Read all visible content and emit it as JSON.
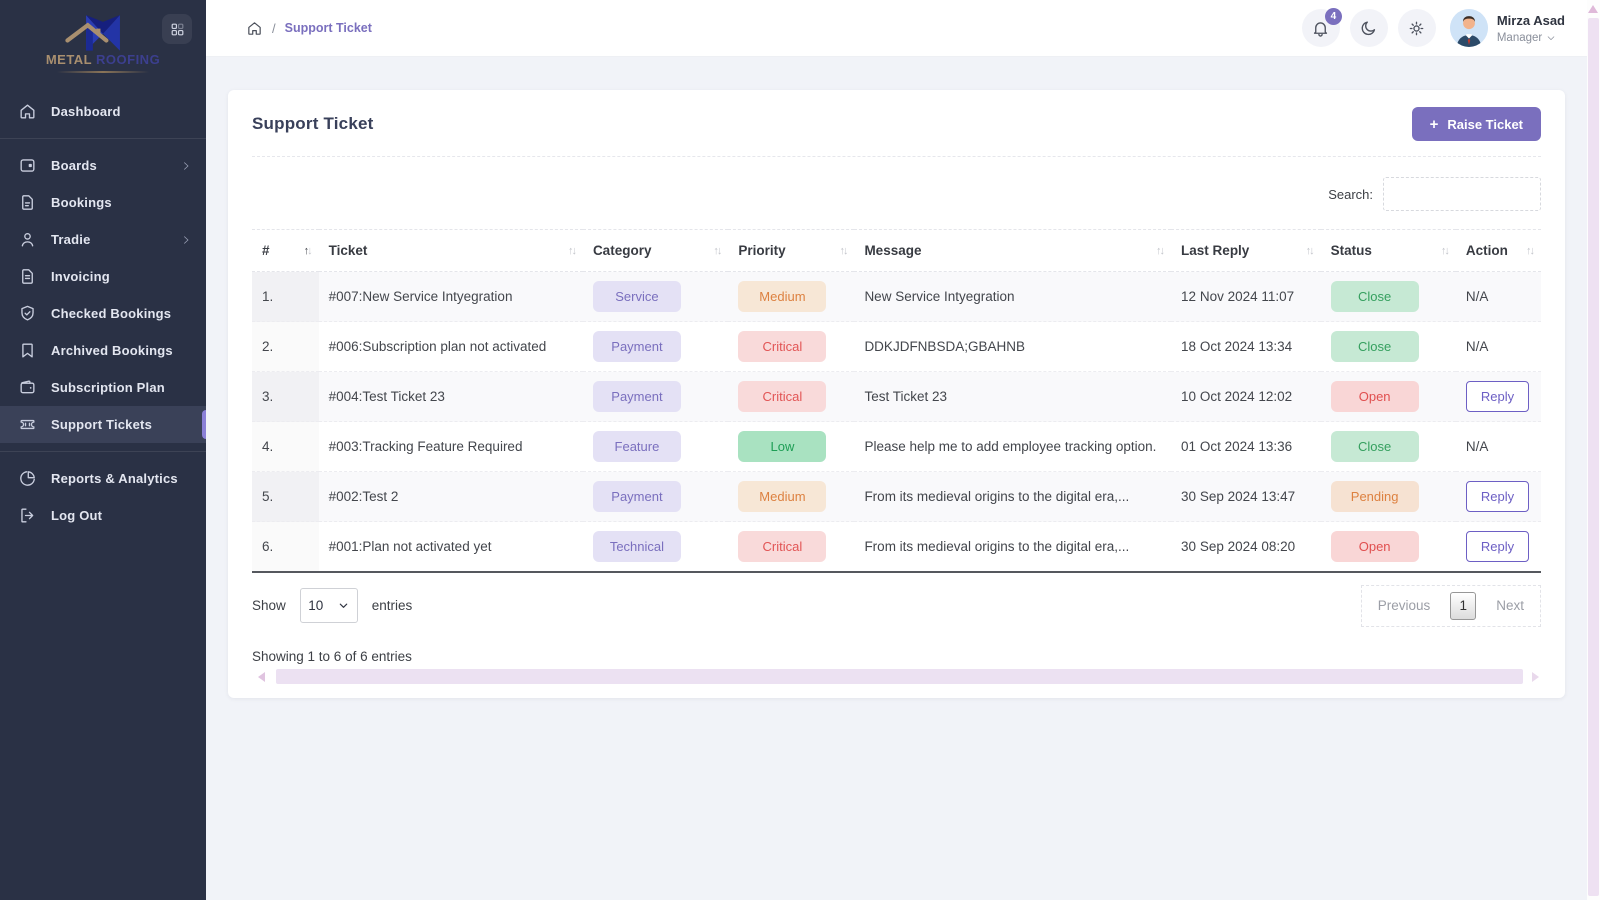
{
  "brand": {
    "name_primary": "METAL",
    "name_secondary": "ROOFING"
  },
  "sidebar": {
    "items": [
      {
        "label": "Dashboard",
        "icon": "home",
        "chevron": false,
        "active": false,
        "divider_after": true
      },
      {
        "label": "Boards",
        "icon": "boards",
        "chevron": true,
        "active": false
      },
      {
        "label": "Bookings",
        "icon": "doc",
        "chevron": false,
        "active": false
      },
      {
        "label": "Tradie",
        "icon": "user",
        "chevron": true,
        "active": false
      },
      {
        "label": "Invoicing",
        "icon": "invoice",
        "chevron": false,
        "active": false
      },
      {
        "label": "Checked Bookings",
        "icon": "shield-check",
        "chevron": false,
        "active": false
      },
      {
        "label": "Archived Bookings",
        "icon": "bookmark",
        "chevron": false,
        "active": false
      },
      {
        "label": "Subscription Plan",
        "icon": "wallet",
        "chevron": false,
        "active": false
      },
      {
        "label": "Support Tickets",
        "icon": "ticket",
        "chevron": false,
        "active": true,
        "divider_after": true
      },
      {
        "label": "Reports & Analytics",
        "icon": "pie",
        "chevron": false,
        "active": false
      },
      {
        "label": "Log Out",
        "icon": "logout",
        "chevron": false,
        "active": false
      }
    ]
  },
  "header": {
    "breadcrumb_current": "Support Ticket",
    "notification_count": "4",
    "user": {
      "name": "Mirza Asad",
      "role": "Manager"
    }
  },
  "card": {
    "title": "Support Ticket",
    "raise_button_label": "Raise Ticket",
    "search_label": "Search:"
  },
  "table": {
    "columns": [
      {
        "label": "#",
        "sort": "asc"
      },
      {
        "label": "Ticket",
        "sort": ""
      },
      {
        "label": "Category",
        "sort": ""
      },
      {
        "label": "Priority",
        "sort": ""
      },
      {
        "label": "Message",
        "sort": ""
      },
      {
        "label": "Last Reply",
        "sort": ""
      },
      {
        "label": "Status",
        "sort": ""
      },
      {
        "label": "Action",
        "sort": ""
      }
    ],
    "rows": [
      {
        "num": "1.",
        "ticket": "#007:New Service Intyegration",
        "category": "Service",
        "priority": "Medium",
        "message": "New Service Intyegration",
        "last_reply": "12 Nov 2024 11:07",
        "status": "Close",
        "action": "N/A"
      },
      {
        "num": "2.",
        "ticket": "#006:Subscription plan not activated",
        "category": "Payment",
        "priority": "Critical",
        "message": "DDKJDFNBSDA;GBAHNB",
        "last_reply": "18 Oct 2024 13:34",
        "status": "Close",
        "action": "N/A"
      },
      {
        "num": "3.",
        "ticket": "#004:Test Ticket 23",
        "category": "Payment",
        "priority": "Critical",
        "message": "Test Ticket 23",
        "last_reply": "10 Oct 2024 12:02",
        "status": "Open",
        "action": "Reply"
      },
      {
        "num": "4.",
        "ticket": "#003:Tracking Feature Required",
        "category": "Feature",
        "priority": "Low",
        "message": "Please help me to add employee tracking option.",
        "last_reply": "01 Oct 2024 13:36",
        "status": "Close",
        "action": "N/A"
      },
      {
        "num": "5.",
        "ticket": "#002:Test 2",
        "category": "Payment",
        "priority": "Medium",
        "message": "From its medieval origins to the digital era,...",
        "last_reply": "30 Sep 2024 13:47",
        "status": "Pending",
        "action": "Reply"
      },
      {
        "num": "6.",
        "ticket": "#001:Plan not activated yet",
        "category": "Technical",
        "priority": "Critical",
        "message": "From its medieval origins to the digital era,...",
        "last_reply": "30 Sep 2024 08:20",
        "status": "Open",
        "action": "Reply"
      }
    ]
  },
  "footer": {
    "show_label": "Show",
    "page_size": "10",
    "entries_label": "entries",
    "previous_label": "Previous",
    "current_page": "1",
    "next_label": "Next",
    "showing_text": "Showing 1 to 6 of 6 entries"
  },
  "colors": {
    "accent_purple": "#7a6fbe",
    "sidebar_bg": "#2a3145",
    "category": {
      "bg": "#e4e1f5",
      "text": "#7a6fbe"
    },
    "priority": {
      "Medium": {
        "bg": "#f7e7d6",
        "text": "#dd8140"
      },
      "Critical": {
        "bg": "#f9dada",
        "text": "#e25555"
      },
      "Low": {
        "bg": "#a9e2c1",
        "text": "#1e9e55"
      }
    },
    "status": {
      "Close": {
        "bg": "#c6e9d4",
        "text": "#35a05f"
      },
      "Open": {
        "bg": "#f9d6d6",
        "text": "#e04f4f"
      },
      "Pending": {
        "bg": "#f6e2d2",
        "text": "#dd8140"
      }
    }
  }
}
